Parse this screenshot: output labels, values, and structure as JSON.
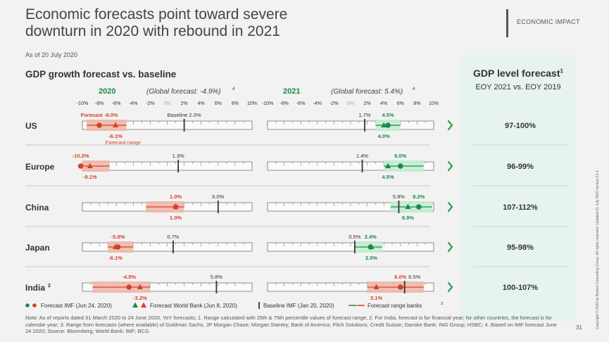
{
  "header": {
    "title_line1": "Economic forecasts point toward severe",
    "title_line2": "downturn in 2020 with rebound in 2021",
    "section": "ECONOMIC IMPACT",
    "as_of": "As of 20 July 2020"
  },
  "colors": {
    "red": "#d2412a",
    "green": "#1a8a4a",
    "red_band": "#f0b8ab",
    "green_band": "#c4ecd2",
    "panel": "#e6f3ef",
    "chevron": "#2fa04f"
  },
  "chart_data": {
    "type": "range-dot-plot",
    "title": "GDP growth forecast vs. baseline",
    "ticks": [
      "-10%",
      "-8%",
      "-6%",
      "-4%",
      "-2%",
      "0%",
      "2%",
      "4%",
      "6%",
      "8%",
      "10%"
    ],
    "xlim": [
      -10,
      10
    ],
    "panels": [
      {
        "year": "2020",
        "global": "(Global forecast: -4.9%)",
        "global_sup": "4"
      },
      {
        "year": "2021",
        "global": "(Global forecast: 5.4%)",
        "global_sup": "4"
      }
    ],
    "level_header": {
      "title": "GDP level forecast",
      "title_sup": "1",
      "subtitle": "EOY 2021 vs. EOY 2019"
    },
    "rows": [
      {
        "name": "US",
        "sup": "",
        "y2020": {
          "imf": -8.0,
          "wb": -6.1,
          "baseline": 2.0,
          "range": [
            -9.5,
            -4.8
          ],
          "labels": {
            "imf": "Forecast -8.0%",
            "wb": "-6.1%",
            "baseline": "Baseline 2.0%",
            "range": "Forecast range"
          }
        },
        "y2021": {
          "imf": 4.5,
          "wb": 4.0,
          "baseline": 1.7,
          "range": [
            3.0,
            6.0
          ],
          "labels": {
            "imf": "4.5%",
            "wb": "4.0%",
            "baseline": "1.7%"
          }
        },
        "level": "97-100%"
      },
      {
        "name": "Europe",
        "sup": "",
        "y2020": {
          "imf": -10.2,
          "wb": -9.1,
          "baseline": 1.3,
          "range": [
            -10.0,
            -6.8
          ],
          "labels": {
            "imf": "-10.2%",
            "wb": "-9.1%",
            "baseline": "1.3%"
          }
        },
        "y2021": {
          "imf": 6.0,
          "wb": 4.5,
          "baseline": 1.4,
          "range": [
            4.0,
            8.8
          ],
          "labels": {
            "imf": "6.0%",
            "wb": "4.5%",
            "baseline": "1.4%"
          }
        },
        "level": "96-99%"
      },
      {
        "name": "China",
        "sup": "",
        "y2020": {
          "imf": 1.0,
          "wb": 1.0,
          "baseline": 6.0,
          "range": [
            -2.5,
            2.0
          ],
          "labels": {
            "imf": "1.0%",
            "wb": "1.0%",
            "baseline": "6.0%"
          }
        },
        "y2021": {
          "imf": 8.2,
          "wb": 6.9,
          "baseline": 5.8,
          "range": [
            4.8,
            9.8
          ],
          "labels": {
            "imf": "8.2%",
            "wb": "6.9%",
            "baseline": "5.8%"
          }
        },
        "level": "107-112%"
      },
      {
        "name": "Japan",
        "sup": "",
        "y2020": {
          "imf": -5.8,
          "wb": -6.1,
          "baseline": 0.7,
          "range": [
            -7.0,
            -4.0
          ],
          "labels": {
            "imf": "-5.8%",
            "wb": "-6.1%",
            "baseline": "0.7%"
          }
        },
        "y2021": {
          "imf": 2.4,
          "wb": 2.5,
          "baseline": 0.5,
          "range": [
            0.5,
            3.8
          ],
          "labels": {
            "imf": "2.4%",
            "wb": "2.5%",
            "baseline": "0.5%"
          }
        },
        "level": "95-98%"
      },
      {
        "name": "India",
        "sup": "2",
        "y2020": {
          "imf": -4.5,
          "wb": -3.2,
          "baseline": 5.8,
          "range": [
            -8.8,
            -2.0
          ],
          "labels": {
            "imf": "-4.5%",
            "wb": "-3.2%",
            "baseline": "5.8%"
          }
        },
        "y2021": {
          "imf": 6.0,
          "wb": 3.1,
          "baseline": 6.5,
          "range": [
            2.0,
            8.8
          ],
          "labels": {
            "imf": "6.0%",
            "wb": "3.1%",
            "baseline": "6.5%"
          }
        },
        "level": "100-107%"
      }
    ],
    "legend": [
      {
        "marker": "dots",
        "label": "Forecast IMF (Jun 24, 2020)"
      },
      {
        "marker": "triangles",
        "label": "Forecast World Bank (Jun 8, 2020)"
      },
      {
        "marker": "bar",
        "label": "Baseline IMF (Jan 20, 2020)"
      },
      {
        "marker": "line",
        "label": "Forecast range banks",
        "sup": "3"
      }
    ]
  },
  "footer": {
    "note": "Note: As of reports dated 31 March 2020 to 24 June 2020, YoY forecasts; 1. Range calculated with 25th & 75th percentile values of forecast range; 2. For India, forecast is for financial year; for other countries, the forecast is for calendar year; 3. Range from forecasts (where available) of Goldman Sachs, JP Morgan Chase; Morgan Stanley; Bank of America; Fitch Solutions; Credit Suisse; Danske Bank; ING Group; HSBC; 4. Based on IMF forecast June 24 2020; Source: Bloomberg; World Bank; IMF; BCG",
    "page": "31",
    "copyright": "Copyright © 2020 by Boston Consulting Group. All rights reserved. Updated 21 July 2020 Version 11.1"
  }
}
